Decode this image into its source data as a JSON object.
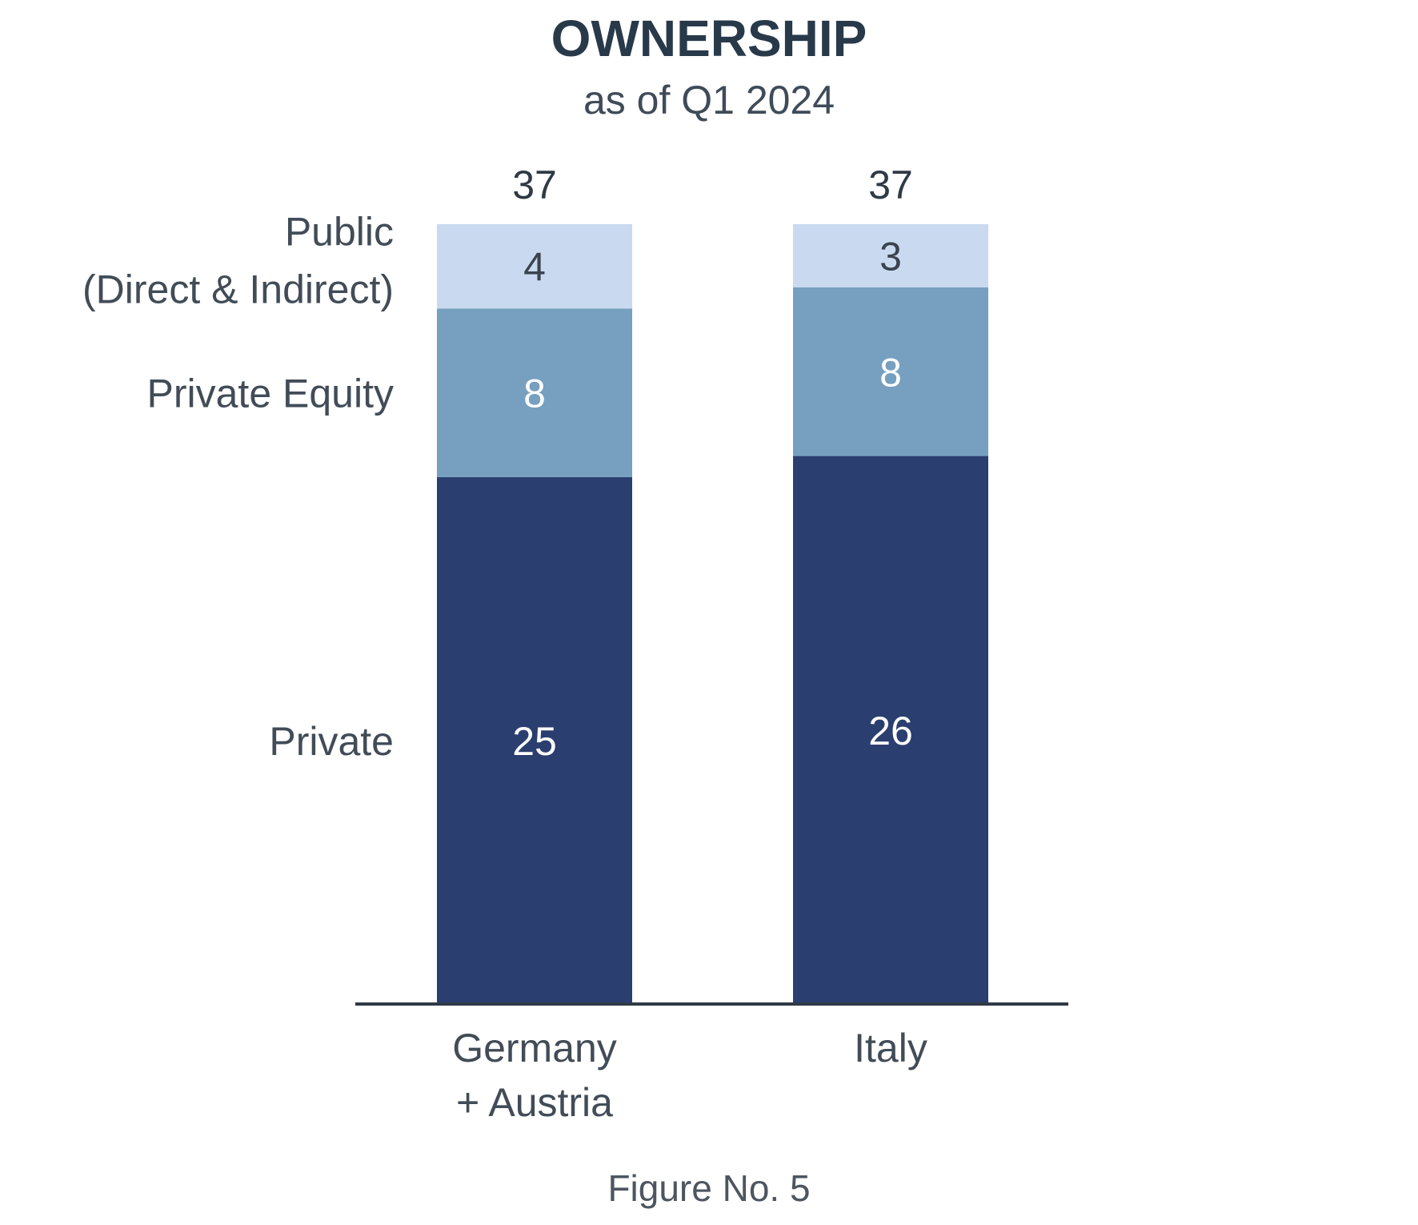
{
  "chart_data": {
    "type": "bar",
    "stacked": true,
    "title": "OWNERSHIP",
    "subtitle": "as of Q1 2024",
    "categories": [
      [
        "Germany",
        "+ Austria"
      ],
      [
        "Italy"
      ]
    ],
    "totals": [
      37,
      37
    ],
    "series": [
      {
        "name": "Private",
        "name_lines": [
          "Private"
        ],
        "values": [
          25,
          26
        ],
        "color": "#2b3e70",
        "label_color": "#ffffff"
      },
      {
        "name": "Private Equity",
        "name_lines": [
          "Private Equity"
        ],
        "values": [
          8,
          8
        ],
        "color": "#779fc0",
        "label_color": "#ffffff"
      },
      {
        "name": "Public (Direct & Indirect)",
        "name_lines": [
          "Public",
          "(Direct & Indirect)"
        ],
        "values": [
          4,
          3
        ],
        "color": "#c9daf0",
        "label_color": "#3a4450"
      }
    ],
    "ylim": [
      0,
      37
    ],
    "grid": false,
    "legend": "left, beside bars",
    "caption": "Figure No. 5"
  }
}
